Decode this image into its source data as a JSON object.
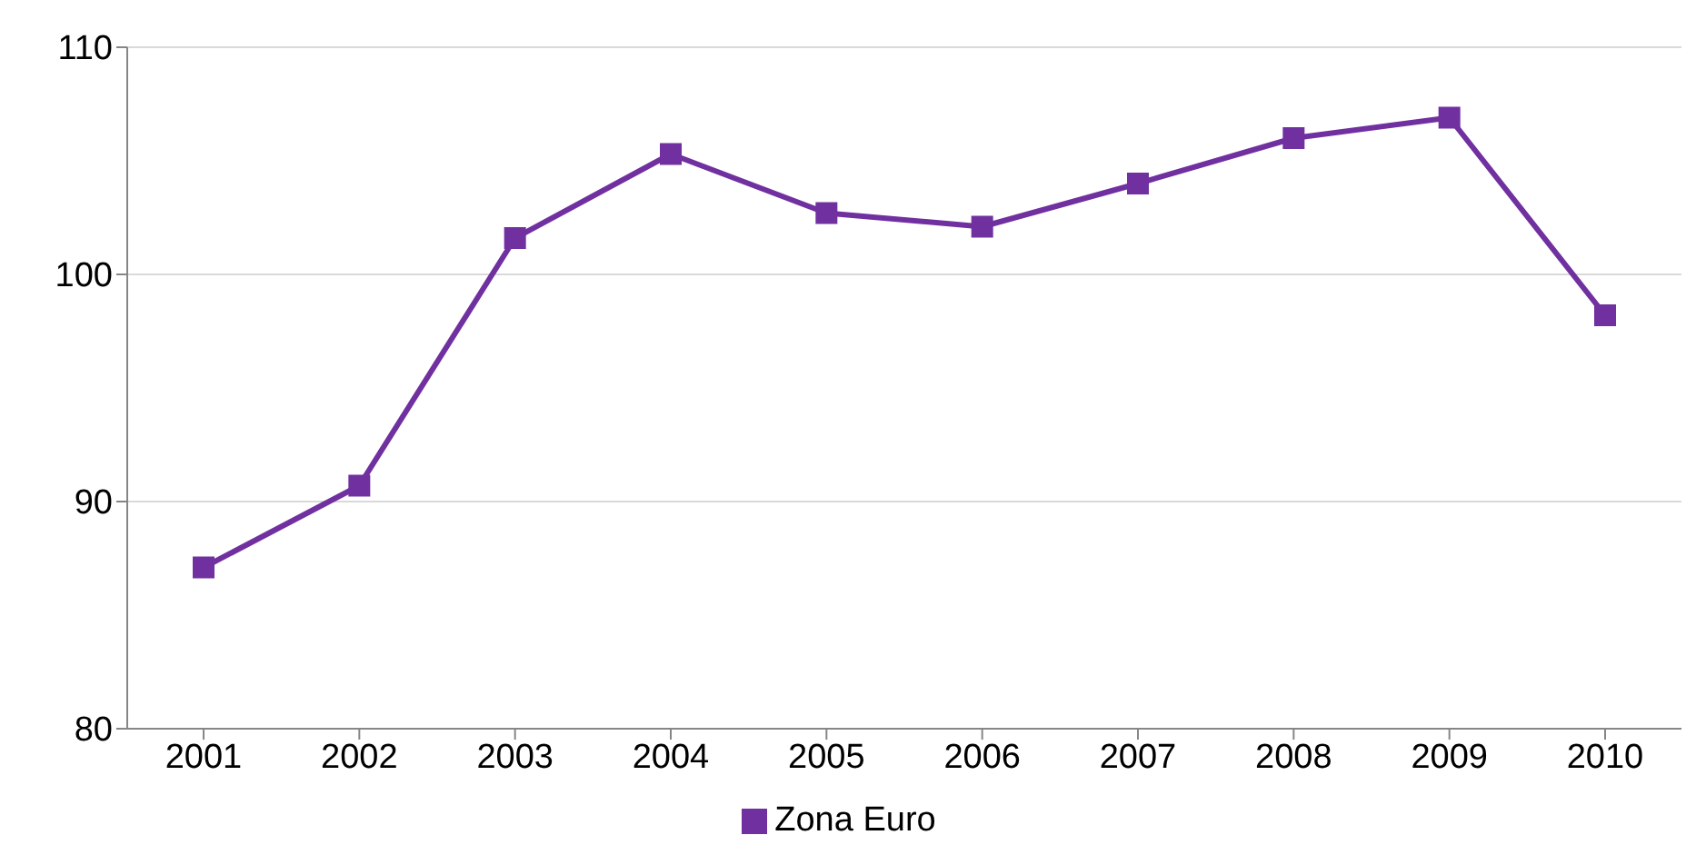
{
  "chart_data": {
    "type": "line",
    "categories": [
      "2001",
      "2002",
      "2003",
      "2004",
      "2005",
      "2006",
      "2007",
      "2008",
      "2009",
      "2010"
    ],
    "series": [
      {
        "name": "Zona Euro",
        "color": "#7030a0",
        "values": [
          87.1,
          90.7,
          101.6,
          105.3,
          102.7,
          102.1,
          104.0,
          106.0,
          106.9,
          98.2
        ]
      }
    ],
    "ylim": [
      80,
      110
    ],
    "yticks": [
      80,
      90,
      100,
      110
    ],
    "grid": "y",
    "legend": "bottom",
    "marker": "square",
    "line_style": "solid"
  }
}
